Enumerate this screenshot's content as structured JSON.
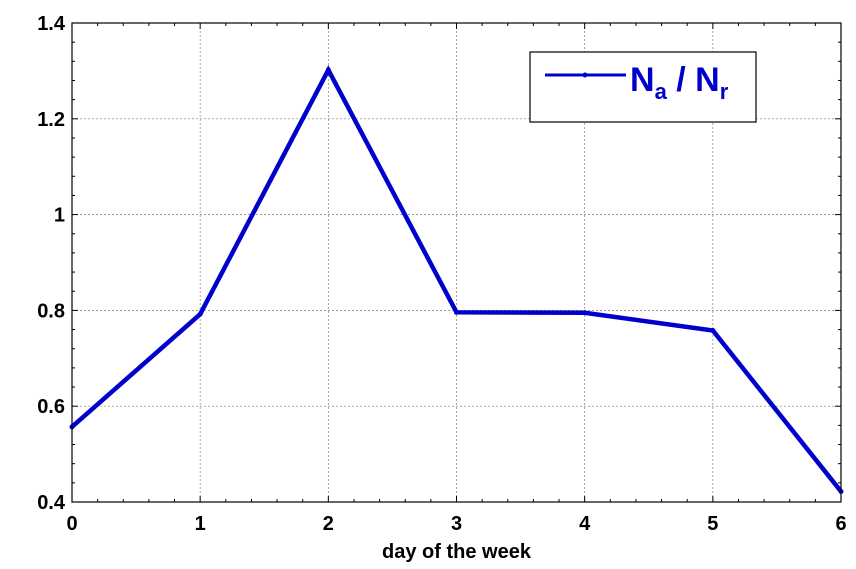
{
  "chart_data": {
    "type": "line",
    "x": [
      0,
      1,
      2,
      3,
      4,
      5,
      6
    ],
    "series": [
      {
        "values": [
          0.557,
          0.792,
          1.302,
          0.796,
          0.795,
          0.758,
          0.422
        ],
        "color": "#0000cc"
      }
    ],
    "legend": {
      "main_1": "N",
      "sub_1": "a",
      "sep": " / ",
      "main_2": "N",
      "sub_2": "r",
      "position": "top-right"
    },
    "xlabel": "day of the week",
    "ylabel": "",
    "title": "",
    "xlim": [
      0,
      6
    ],
    "ylim": [
      0.4,
      1.4
    ],
    "xticks": [
      0,
      1,
      2,
      3,
      4,
      5,
      6
    ],
    "xtick_labels": [
      "0",
      "1",
      "2",
      "3",
      "4",
      "5",
      "6"
    ],
    "yticks": [
      0.4,
      0.6,
      0.8,
      1.0,
      1.2,
      1.4
    ],
    "ytick_labels": [
      "0.4",
      "0.6",
      "0.8",
      "1",
      "1.2",
      "1.4"
    ],
    "grid": true
  }
}
